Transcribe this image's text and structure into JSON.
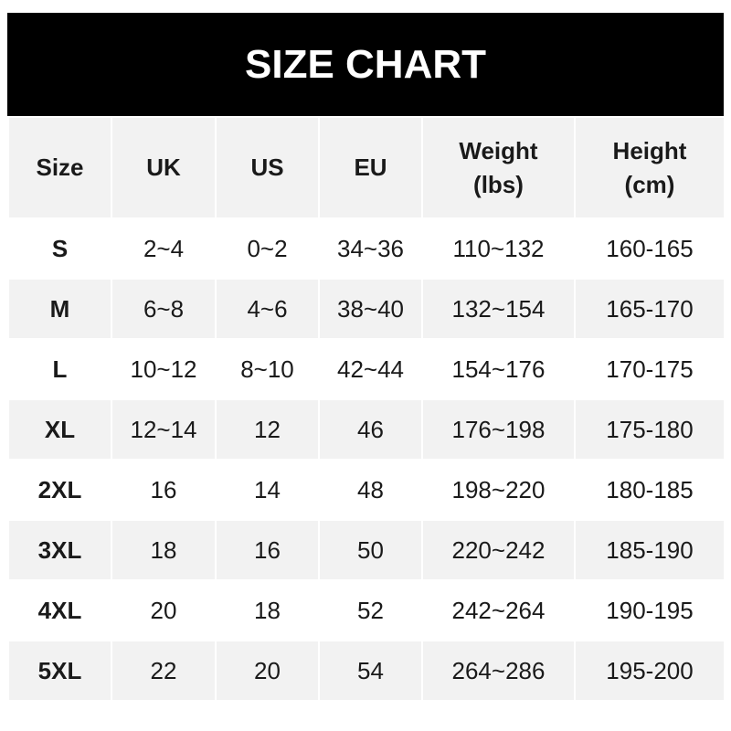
{
  "title": "SIZE CHART",
  "headers": [
    [
      "Size"
    ],
    [
      "UK"
    ],
    [
      "US"
    ],
    [
      "EU"
    ],
    [
      "Weight",
      "(lbs)"
    ],
    [
      "Height",
      "(cm)"
    ]
  ],
  "rows": [
    [
      "S",
      "2~4",
      "0~2",
      "34~36",
      "110~132",
      "160-165"
    ],
    [
      "M",
      "6~8",
      "4~6",
      "38~40",
      "132~154",
      "165-170"
    ],
    [
      "L",
      "10~12",
      "8~10",
      "42~44",
      "154~176",
      "170-175"
    ],
    [
      "XL",
      "12~14",
      "12",
      "46",
      "176~198",
      "175-180"
    ],
    [
      "2XL",
      "16",
      "14",
      "48",
      "198~220",
      "180-185"
    ],
    [
      "3XL",
      "18",
      "16",
      "50",
      "220~242",
      "185-190"
    ],
    [
      "4XL",
      "20",
      "18",
      "52",
      "242~264",
      "190-195"
    ],
    [
      "5XL",
      "22",
      "20",
      "54",
      "264~286",
      "195-200"
    ]
  ]
}
